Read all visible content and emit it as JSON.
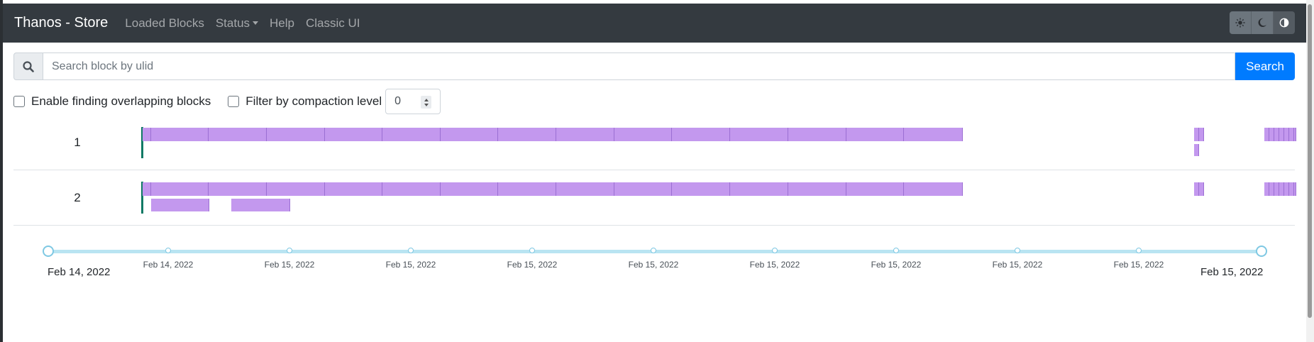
{
  "navbar": {
    "brand": "Thanos - Store",
    "items": [
      "Loaded Blocks",
      "Status",
      "Help",
      "Classic UI"
    ],
    "theme_buttons": [
      "light-theme",
      "dark-theme",
      "auto-theme"
    ]
  },
  "search": {
    "placeholder": "Search block by ulid",
    "button_label": "Search",
    "value": ""
  },
  "options": {
    "overlap_label": "Enable finding overlapping blocks",
    "overlap_checked": false,
    "compaction_label": "Filter by compaction level",
    "compaction_checked": false,
    "compaction_value": "0"
  },
  "rows": [
    {
      "label": "1"
    },
    {
      "label": "2"
    }
  ],
  "slider": {
    "start_label": "Feb 14, 2022",
    "end_label": "Feb 15, 2022",
    "tick_labels": [
      "Feb 14, 2022",
      "Feb 15, 2022",
      "Feb 15, 2022",
      "Feb 15, 2022",
      "Feb 15, 2022",
      "Feb 15, 2022",
      "Feb 15, 2022",
      "Feb 15, 2022",
      "Feb 15, 2022"
    ]
  },
  "colors": {
    "block": "#c398ee",
    "navbar": "#343a40",
    "accent": "#007bff",
    "slider": "#b9e4f2",
    "marker": "#117a65"
  }
}
